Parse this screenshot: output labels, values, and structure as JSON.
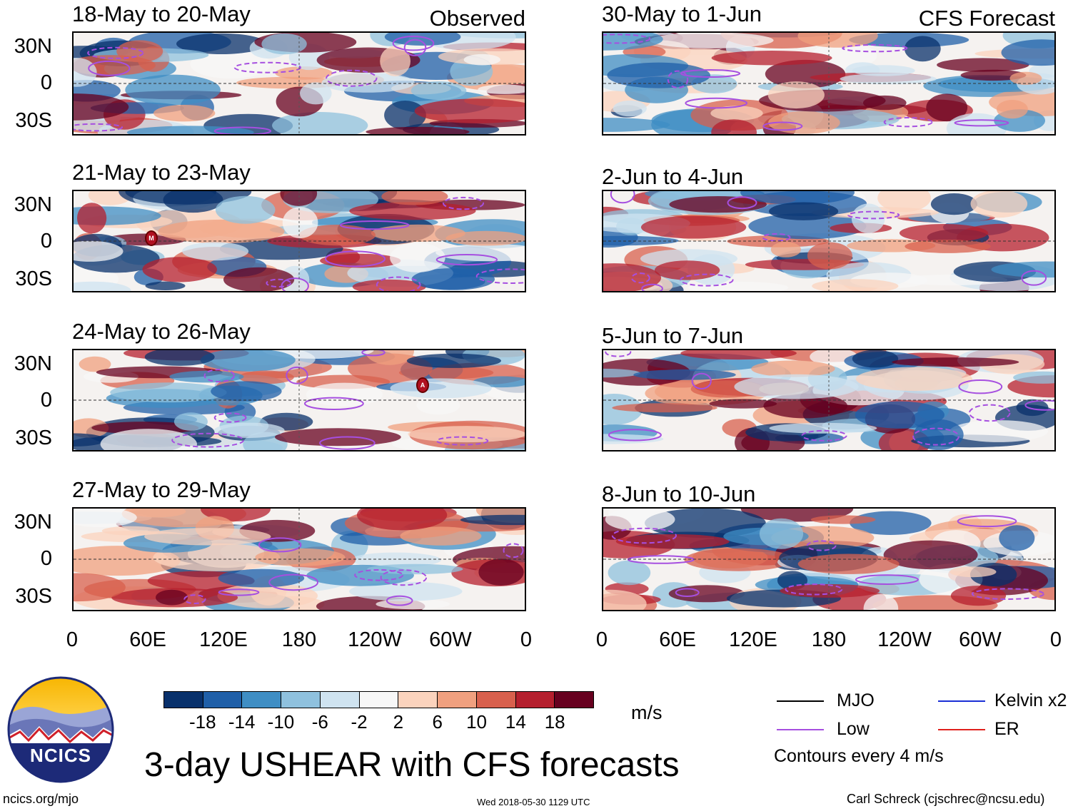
{
  "observed": {
    "tag": "Observed",
    "panels": [
      {
        "title": "18-May to 20-May"
      },
      {
        "title": "21-May to 23-May"
      },
      {
        "title": "24-May to 26-May"
      },
      {
        "title": "27-May to 29-May"
      }
    ]
  },
  "forecast": {
    "tag": "CFS Forecast",
    "panels": [
      {
        "title": "30-May to 1-Jun"
      },
      {
        "title": "2-Jun to 4-Jun"
      },
      {
        "title": "5-Jun to 7-Jun"
      },
      {
        "title": "8-Jun to 10-Jun"
      }
    ]
  },
  "lat_labels": [
    "30N",
    "0",
    "30S"
  ],
  "lon_labels": [
    "0",
    "60E",
    "120E",
    "180",
    "120W",
    "60W",
    "0"
  ],
  "colorbar": {
    "colors": [
      "#08306b",
      "#1f5fa8",
      "#3f8ec4",
      "#8fc1de",
      "#cfe3f0",
      "#f7f7f7",
      "#fbd3bd",
      "#f0a07f",
      "#d8604d",
      "#b51f2e",
      "#67001f"
    ],
    "labels": [
      "-18",
      "-14",
      "-10",
      "-6",
      "-2",
      "2",
      "6",
      "10",
      "14",
      "18"
    ],
    "unit": "m/s"
  },
  "legend": {
    "items": [
      {
        "label": "MJO",
        "color": "#000000"
      },
      {
        "label": "Kelvin x2",
        "color": "#1a2fd6"
      },
      {
        "label": "Low",
        "color": "#a64fe0"
      },
      {
        "label": "ER",
        "color": "#e0201c"
      }
    ],
    "note": "Contours every 4 m/s"
  },
  "logo": {
    "text": "NCICS"
  },
  "title": "3-day USHEAR with CFS forecasts",
  "footer": {
    "left": "ncics.org/mjo",
    "center": "Wed 2018-05-30 1129 UTC",
    "right": "Carl Schreck (cjschrec@ncsu.edu)"
  },
  "markers": [
    {
      "panel": "observed-1",
      "letter": "M"
    },
    {
      "panel": "observed-2",
      "letter": "A"
    }
  ]
}
